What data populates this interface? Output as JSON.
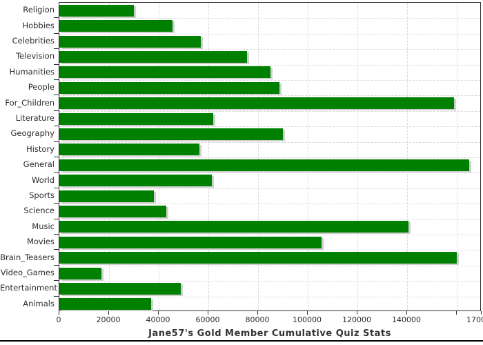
{
  "chart_data": {
    "type": "bar",
    "orientation": "horizontal",
    "title": "Jane57's Gold Member Cumulative Quiz Stats",
    "categories": [
      "Religion",
      "Hobbies",
      "Celebrities",
      "Television",
      "Humanities",
      "People",
      "For_Children",
      "Literature",
      "Geography",
      "History",
      "General",
      "World",
      "Sports",
      "Science",
      "Music",
      "Movies",
      "Brain_Teasers",
      "Video_Games",
      "Entertainment",
      "Animals"
    ],
    "values": [
      30000,
      45500,
      57000,
      75500,
      85000,
      88500,
      159000,
      62000,
      90000,
      56500,
      165000,
      61500,
      38000,
      43000,
      140500,
      105500,
      160000,
      17000,
      49000,
      37000
    ],
    "xlim": [
      0,
      170000
    ],
    "x_ticks": [
      {
        "value": 0,
        "label": "0"
      },
      {
        "value": 20000,
        "label": "20000"
      },
      {
        "value": 40000,
        "label": "40000"
      },
      {
        "value": 60000,
        "label": "60000"
      },
      {
        "value": 80000,
        "label": "80000"
      },
      {
        "value": 100000,
        "label": "100000"
      },
      {
        "value": 120000,
        "label": "120000"
      },
      {
        "value": 140000,
        "label": "140000"
      },
      {
        "value": 160000,
        "label": ""
      },
      {
        "value": 170000,
        "label": "170000"
      }
    ],
    "grid": "dashed",
    "legend": "none",
    "bar_color": "#008000",
    "shadow_color": "#cfcfcf",
    "grid_color": "#d9d9d9",
    "frame_color": "#2f2f2f",
    "text_color": "#2b2b2b",
    "title_color": "#333333"
  }
}
